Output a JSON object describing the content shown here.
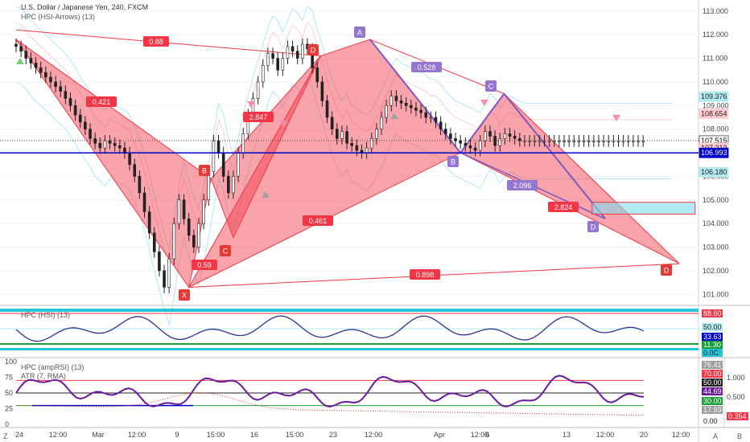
{
  "header": {
    "symbol_title": "U.S. Dollar / Japanese Yen, 240, FXCM",
    "indicator_main": "HPC (HSI-Arrows) (13)",
    "pane1_title": "HPC (HSI) (13)",
    "pane2_title1": "HPC (ampRSI) (13)",
    "pane2_title2": "ATR (7, RMA)"
  },
  "colors": {
    "bear_pattern": "#f23645",
    "bull_pattern": "#7e57c2",
    "blue_line": "#0000cc",
    "cyan_box": "#80deea",
    "green": "#1b9e3a",
    "teal": "#26c6da"
  },
  "chart_data": [
    {
      "type": "line",
      "name": "main-price",
      "y_ticks": [
        113.0,
        112.0,
        111.0,
        110.0,
        109.0,
        108.0,
        107.0,
        106.0,
        105.0,
        104.0,
        103.0,
        102.0,
        101.0
      ],
      "y_tick_labels": [
        "113.000",
        "112.000",
        "111.000",
        "110.000",
        "109.000",
        "108.000",
        "107.000",
        "106.000",
        "105.000",
        "104.000",
        "103.000",
        "102.000",
        "101.000"
      ],
      "ylim": [
        100.6,
        113.3
      ],
      "x_tick_labels": [
        "24",
        "12:00",
        "Mar",
        "12:00",
        "9",
        "15:00",
        "16",
        "15:00",
        "23",
        "12:00",
        "Apr",
        "12:00",
        "6",
        "13",
        "12:00",
        "20",
        "12:00"
      ],
      "price_badges": [
        {
          "value": 109.376,
          "text": "109.376",
          "color": "#b2ebf2",
          "fg": "#222222"
        },
        {
          "value": 108.654,
          "text": "108.654",
          "color": "#ffcdd2",
          "fg": "#222222"
        },
        {
          "value": 107.515,
          "text": "107.515",
          "color": "#ffffff",
          "fg": "#000000"
        },
        {
          "value": 107.213,
          "text": "107.213",
          "color": "#ffcdd2",
          "fg": "#222222"
        },
        {
          "value": 106.993,
          "text": "106.993",
          "color": "#0000cc",
          "fg": "#ffffff"
        },
        {
          "value": 106.18,
          "text": "106.180",
          "color": "#b2ebf2",
          "fg": "#222222"
        }
      ],
      "horizontal_line": 106.993,
      "current_price": 107.515,
      "series": [
        {
          "name": "",
          "x": [
            0,
            6,
            12,
            18,
            24,
            30,
            36,
            42,
            48,
            54,
            60,
            66,
            72,
            78,
            84,
            90,
            96,
            102,
            108,
            114,
            120,
            126,
            132,
            138,
            144,
            150,
            156,
            162,
            168,
            174,
            180,
            186,
            192,
            198,
            204,
            210,
            216,
            222,
            228,
            234,
            240,
            246,
            252,
            258,
            264,
            270,
            276,
            282,
            288,
            294,
            300,
            306,
            312,
            318,
            324,
            330,
            336,
            342,
            348,
            354,
            360,
            366,
            372,
            378,
            384,
            390,
            396,
            402,
            408,
            414,
            420,
            426,
            432,
            438,
            444,
            450,
            456,
            462,
            468,
            474,
            480,
            486,
            492,
            498,
            504,
            510,
            516,
            522,
            528,
            534,
            540,
            546,
            552,
            558,
            564,
            570,
            576,
            582,
            588,
            594,
            600,
            606,
            612,
            618,
            624,
            630,
            636,
            642,
            648,
            654,
            660,
            666,
            672,
            678,
            684,
            690,
            696,
            702,
            708,
            714,
            720,
            726,
            732,
            738,
            744,
            750,
            756,
            762,
            768,
            774,
            780,
            786,
            792,
            798
          ],
          "values": [
            111.6,
            111.5,
            111.3,
            111.0,
            110.8,
            110.6,
            110.4,
            110.2,
            110.0,
            109.8,
            109.6,
            109.3,
            109.0,
            108.6,
            108.3,
            108.0,
            107.6,
            107.4,
            107.2,
            107.5,
            107.4,
            107.3,
            107.2,
            107.0,
            106.5,
            106.0,
            105.3,
            104.5,
            103.6,
            102.8,
            102.0,
            101.3,
            102.5,
            104.0,
            105.0,
            104.2,
            103.5,
            103.0,
            104.0,
            105.0,
            106.2,
            107.5,
            107.0,
            106.0,
            105.3,
            106.0,
            107.0,
            107.8,
            108.6,
            109.3,
            110.0,
            110.7,
            111.2,
            111.0,
            110.5,
            111.0,
            111.5,
            111.3,
            111.0,
            111.6,
            111.4,
            110.6,
            110.0,
            109.2,
            108.5,
            108.0,
            107.6,
            107.9,
            107.4,
            107.3,
            107.1,
            107.0,
            107.2,
            107.6,
            108.0,
            108.5,
            109.0,
            109.4,
            109.2,
            109.1,
            109.0,
            108.9,
            108.8,
            108.7,
            108.5,
            108.5,
            108.3,
            108.0,
            107.8,
            107.6,
            107.5,
            107.4,
            107.3,
            107.2,
            107.1,
            107.5,
            107.9,
            107.7,
            107.3,
            107.6,
            107.8,
            107.7,
            107.6,
            107.5,
            107.5,
            107.5,
            107.5,
            107.5,
            107.5,
            107.5,
            107.5,
            107.5,
            107.5,
            107.5,
            107.5,
            107.5,
            107.5,
            107.5,
            107.5,
            107.5,
            107.5,
            107.5,
            107.5,
            107.5,
            107.5,
            107.5,
            107.5,
            107.5,
            107.5,
            107.5,
            107.5,
            107.5,
            107.5,
            107.5
          ]
        }
      ],
      "pattern_labels": [
        {
          "text": "0.88",
          "kind": "bear"
        },
        {
          "text": "0.421",
          "kind": "bear"
        },
        {
          "text": "2.847",
          "kind": "bear"
        },
        {
          "text": "0.59",
          "kind": "bear"
        },
        {
          "text": "0.461",
          "kind": "bear"
        },
        {
          "text": "0.898",
          "kind": "bear"
        },
        {
          "text": "0.528",
          "kind": "bull"
        },
        {
          "text": "2.096",
          "kind": "bull"
        },
        {
          "text": "2.824",
          "kind": "bear"
        }
      ],
      "point_labels": [
        {
          "text": "X",
          "kind": "bear"
        },
        {
          "text": "B",
          "kind": "bear"
        },
        {
          "text": "C",
          "kind": "bear"
        },
        {
          "text": "D",
          "kind": "bear"
        },
        {
          "text": "A",
          "kind": "bull"
        },
        {
          "text": "B",
          "kind": "bull"
        },
        {
          "text": "C",
          "kind": "bull"
        },
        {
          "text": "D",
          "kind": "bull"
        },
        {
          "text": "D",
          "kind": "bear"
        }
      ]
    },
    {
      "type": "line",
      "name": "hsi-pane",
      "badges": [
        {
          "text": "88.60",
          "color": "#f23645",
          "fg": "#ffffff"
        },
        {
          "text": "50.00",
          "color": "#b2ebf2",
          "fg": "#222222"
        },
        {
          "text": "33.63",
          "color": "#0000cc",
          "fg": "#ffffff"
        },
        {
          "text": "11.30",
          "color": "#1b9e3a",
          "fg": "#ffffff"
        },
        {
          "text": "0.0C",
          "color": "#26c6da",
          "fg": "#222222"
        }
      ]
    },
    {
      "type": "line",
      "name": "amprsi-pane",
      "left_ticks": [
        "100",
        "75",
        "50",
        "25",
        "0"
      ],
      "right_ticks": [
        "1.000",
        "0.500"
      ],
      "badges": [
        {
          "text": "76.41",
          "color": "#9e9e9e",
          "fg": "#ffffff"
        },
        {
          "text": "70.00",
          "color": "#f23645",
          "fg": "#ffffff"
        },
        {
          "text": "50.00",
          "color": "#222222",
          "fg": "#ffffff"
        },
        {
          "text": "44.69",
          "color": "#6a1b9a",
          "fg": "#ffffff"
        },
        {
          "text": "30.00",
          "color": "#1b9e3a",
          "fg": "#ffffff"
        },
        {
          "text": "17.93",
          "color": "#9e9e9e",
          "fg": "#ffffff"
        },
        {
          "text": "0.00",
          "color": "#ffffff",
          "fg": "#222222"
        },
        {
          "text": "0.354",
          "color": "#f23645",
          "fg": "#ffffff"
        }
      ]
    }
  ],
  "footer": {
    "left_z": "Z",
    "right_a": "A",
    "right_b": "B"
  }
}
